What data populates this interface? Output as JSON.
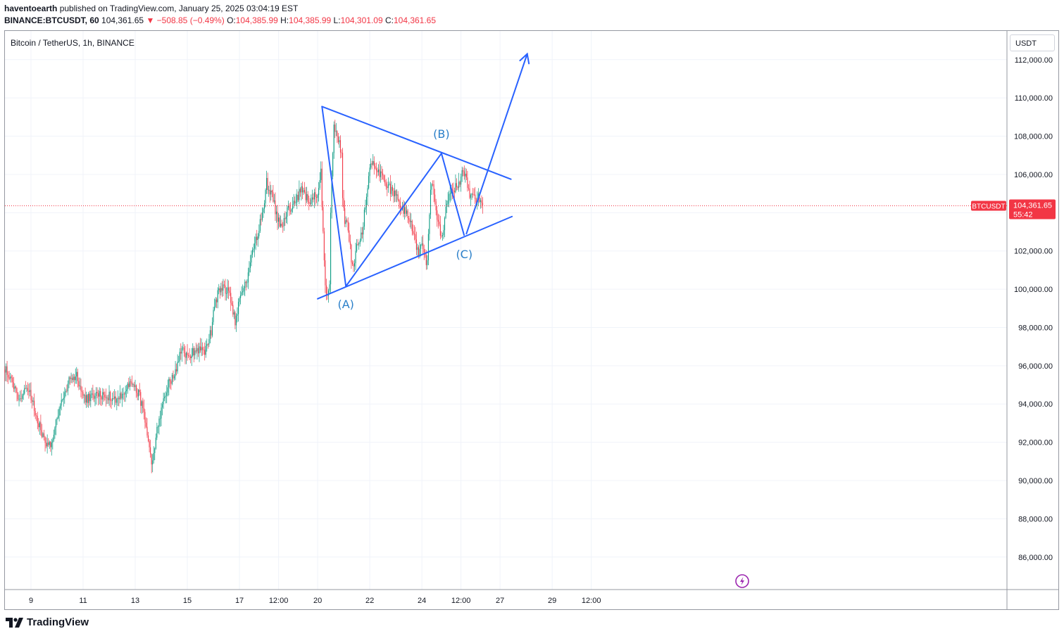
{
  "header": {
    "author": "haventoearth",
    "published_text": "published on TradingView.com, January 25, 2025 03:04:19 EST",
    "symbol": "BINANCE:BTCUSDT, 60",
    "last": "104,361.65",
    "change": "▼ −508.85 (−0.49%)",
    "o_label": "O:",
    "o_value": "104,385.99",
    "h_label": "H:",
    "h_value": "104,385.99",
    "l_label": "L:",
    "l_value": "104,301.09",
    "c_label": "C:",
    "c_value": "104,361.65"
  },
  "series_title": "Bitcoin / TetherUS, 1h, BINANCE",
  "currency_button": "USDT",
  "footer_brand": "TradingView",
  "colors": {
    "up": "#089981",
    "down": "#f23645",
    "drawing": "#2962ff",
    "wave_label": "#2a7fc9",
    "grid": "#f0f3fa",
    "price_label_bg": "#f23645",
    "event_icon": "#9c27b0"
  },
  "chart_data": {
    "type": "candlestick",
    "interval": "1h",
    "x_ticks": [
      "9",
      "11",
      "13",
      "15",
      "17",
      "12:00",
      "20",
      "22",
      "24",
      "12:00",
      "27",
      "29",
      "12:00"
    ],
    "y_ticks": [
      "86,000.00",
      "88,000.00",
      "90,000.00",
      "92,000.00",
      "94,000.00",
      "96,000.00",
      "98,000.00",
      "100,000.00",
      "102,000.00",
      "104,000.00",
      "106,000.00",
      "108,000.00",
      "110,000.00",
      "112,000.00"
    ],
    "ylim": [
      84300,
      113500
    ],
    "last_price": {
      "symbol": "BTCUSDT",
      "value": "104,361.65",
      "countdown": "55:42",
      "price": 104361.65
    },
    "close_path_anchors": [
      [
        0,
        95900
      ],
      [
        5,
        95300
      ],
      [
        10,
        94700
      ],
      [
        14,
        94300
      ],
      [
        20,
        95000
      ],
      [
        24,
        94300
      ],
      [
        30,
        93200
      ],
      [
        36,
        92100
      ],
      [
        42,
        91900
      ],
      [
        47,
        93000
      ],
      [
        54,
        94400
      ],
      [
        60,
        95300
      ],
      [
        66,
        95500
      ],
      [
        70,
        94700
      ],
      [
        74,
        94200
      ],
      [
        80,
        94400
      ],
      [
        88,
        94500
      ],
      [
        96,
        94400
      ],
      [
        104,
        94300
      ],
      [
        110,
        94600
      ],
      [
        116,
        95100
      ],
      [
        120,
        94900
      ],
      [
        124,
        94400
      ],
      [
        128,
        93400
      ],
      [
        132,
        91800
      ],
      [
        135,
        90900
      ],
      [
        138,
        91900
      ],
      [
        142,
        93200
      ],
      [
        147,
        94500
      ],
      [
        152,
        95200
      ],
      [
        156,
        95500
      ],
      [
        160,
        96300
      ],
      [
        163,
        96800
      ],
      [
        168,
        96400
      ],
      [
        174,
        96800
      ],
      [
        180,
        96900
      ],
      [
        184,
        96700
      ],
      [
        190,
        97800
      ],
      [
        193,
        99300
      ],
      [
        196,
        99700
      ],
      [
        200,
        100100
      ],
      [
        206,
        99900
      ],
      [
        210,
        98900
      ],
      [
        212,
        98200
      ],
      [
        216,
        99500
      ],
      [
        220,
        100000
      ],
      [
        224,
        100700
      ],
      [
        228,
        101900
      ],
      [
        232,
        102700
      ],
      [
        236,
        103800
      ],
      [
        239,
        104700
      ],
      [
        241,
        105600
      ],
      [
        243,
        105200
      ],
      [
        246,
        104900
      ],
      [
        250,
        103900
      ],
      [
        253,
        103300
      ],
      [
        256,
        103300
      ],
      [
        260,
        104100
      ],
      [
        264,
        104200
      ],
      [
        268,
        104600
      ],
      [
        272,
        105200
      ],
      [
        276,
        105000
      ],
      [
        280,
        104600
      ],
      [
        284,
        104800
      ],
      [
        288,
        104900
      ],
      [
        291,
        106100
      ],
      [
        292,
        104100
      ],
      [
        294,
        101600
      ],
      [
        295,
        100000
      ],
      [
        297,
        99600
      ],
      [
        299,
        100200
      ],
      [
        300,
        103800
      ],
      [
        301,
        105800
      ],
      [
        302,
        107300
      ],
      [
        303,
        108400
      ],
      [
        305,
        108100
      ],
      [
        308,
        107700
      ],
      [
        310,
        107100
      ],
      [
        311,
        104800
      ],
      [
        313,
        103600
      ],
      [
        316,
        103200
      ],
      [
        319,
        101600
      ],
      [
        321,
        101200
      ],
      [
        323,
        102000
      ],
      [
        326,
        102400
      ],
      [
        329,
        103100
      ],
      [
        332,
        104300
      ],
      [
        334,
        105400
      ],
      [
        336,
        106400
      ],
      [
        339,
        106700
      ],
      [
        343,
        106300
      ],
      [
        347,
        105800
      ],
      [
        351,
        105500
      ],
      [
        355,
        105200
      ],
      [
        359,
        104900
      ],
      [
        363,
        104500
      ],
      [
        367,
        104200
      ],
      [
        371,
        103800
      ],
      [
        375,
        103200
      ],
      [
        378,
        102500
      ],
      [
        381,
        101900
      ],
      [
        384,
        102200
      ],
      [
        387,
        101600
      ],
      [
        389,
        101400
      ],
      [
        391,
        104000
      ],
      [
        392,
        105200
      ],
      [
        393,
        105500
      ],
      [
        395,
        105100
      ],
      [
        397,
        104200
      ],
      [
        399,
        103500
      ],
      [
        401,
        103000
      ],
      [
        403,
        102900
      ],
      [
        405,
        103600
      ],
      [
        407,
        104600
      ],
      [
        410,
        105000
      ],
      [
        414,
        105300
      ],
      [
        417,
        105400
      ],
      [
        420,
        105800
      ],
      [
        422,
        106300
      ],
      [
        424,
        105800
      ],
      [
        426,
        105400
      ],
      [
        428,
        105000
      ],
      [
        431,
        104800
      ],
      [
        434,
        104700
      ],
      [
        436,
        104900
      ],
      [
        438,
        104500
      ],
      [
        440,
        104361.65
      ]
    ],
    "candle_count": 441,
    "annotations": {
      "triangle_upper": [
        {
          "date": "Jan 20 04:00",
          "price": 109550
        },
        {
          "date": "Jan 27 10:00",
          "price": 105750
        }
      ],
      "triangle_lower": [
        {
          "date": "Jan 20 00:00",
          "price": 99500
        },
        {
          "date": "Jan 27 11:00",
          "price": 103800
        }
      ],
      "wave_path": [
        {
          "date": "Jan 20 04:00",
          "price": 109550
        },
        {
          "date": "Jan 21 02:00",
          "price": 100150
        },
        {
          "date": "Jan 24 18:00",
          "price": 107100
        },
        {
          "date": "Jan 25 15:00",
          "price": 102800
        }
      ],
      "target_arrow": [
        {
          "date": "Jan 25 17:00",
          "price": 102900
        },
        {
          "date": "Jan 28 01:00",
          "price": 112300
        }
      ],
      "wave_labels": [
        {
          "text": "(A)",
          "date": "Jan 21 02:00",
          "price": 99200
        },
        {
          "text": "(B)",
          "date": "Jan 24 18:00",
          "price": 108100
        },
        {
          "text": "(C)",
          "date": "Jan 25 15:00",
          "price": 101800
        }
      ]
    }
  }
}
